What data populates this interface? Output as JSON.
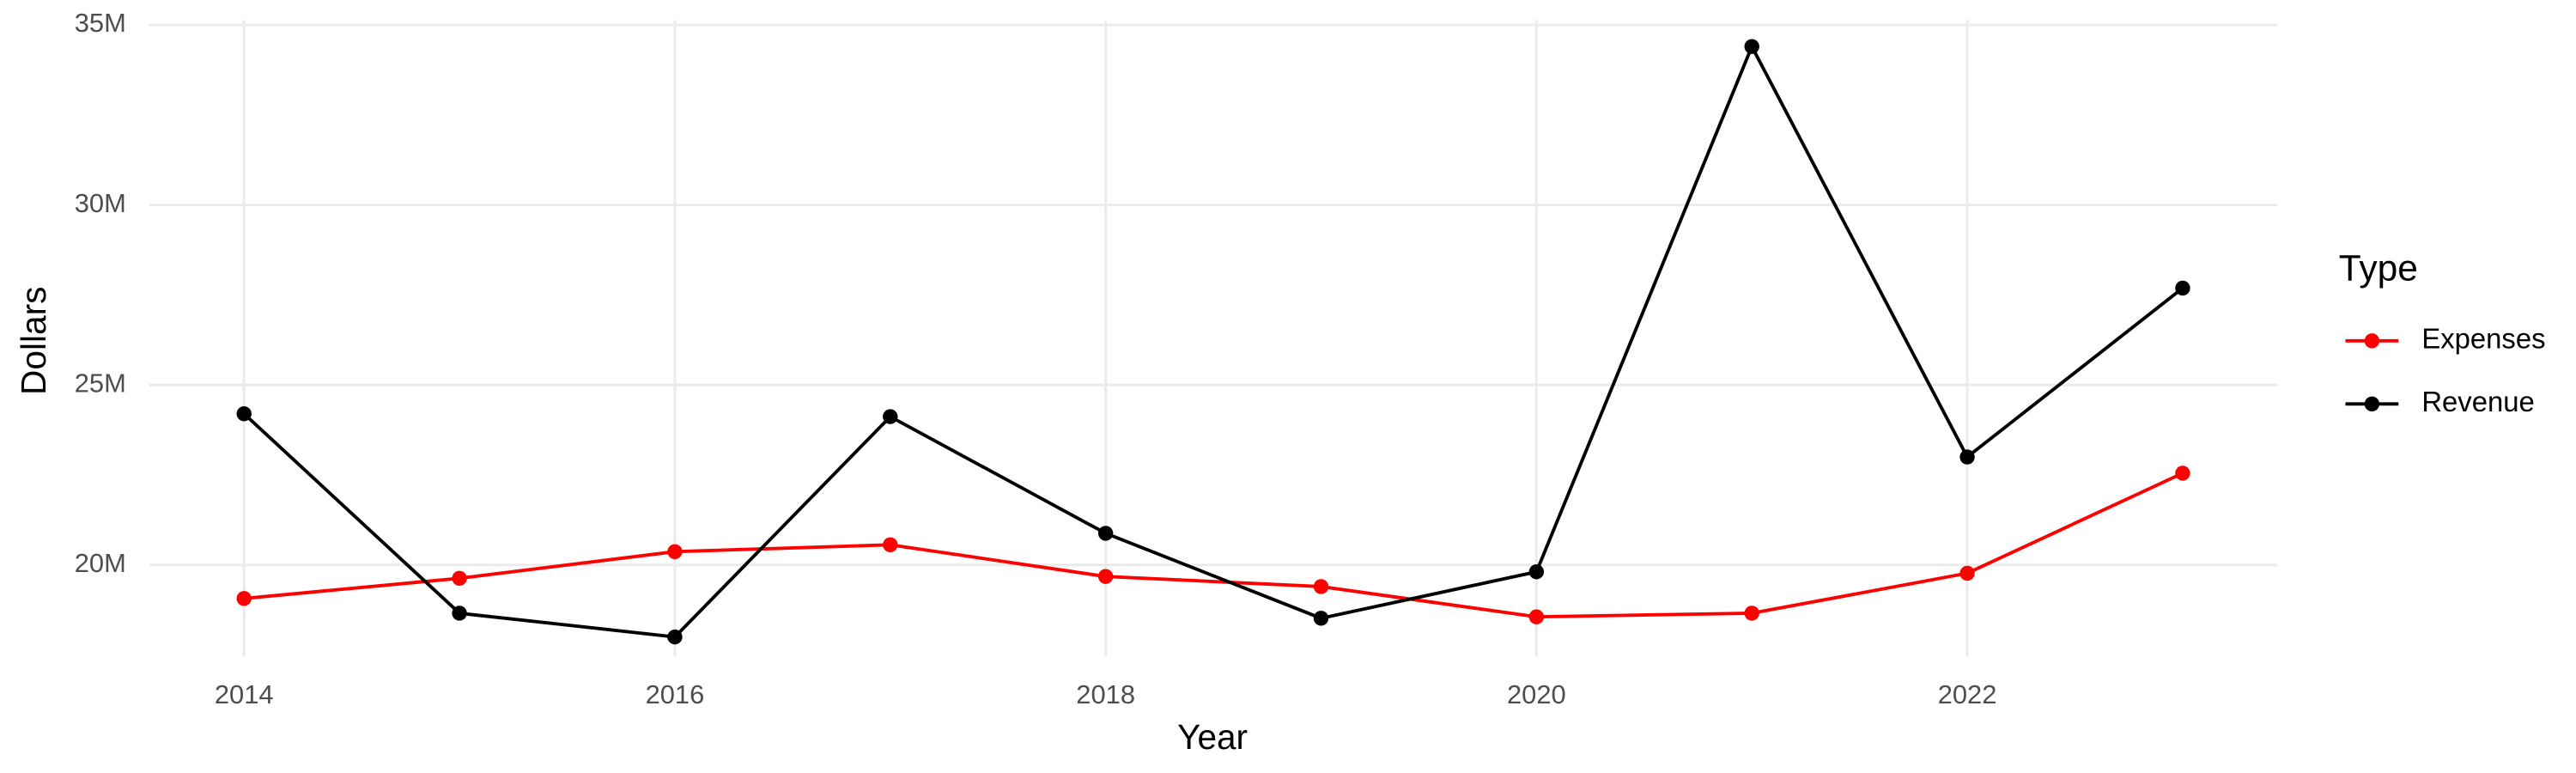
{
  "chart_data": {
    "type": "line",
    "x_label": "Year",
    "y_label": "Dollars",
    "legend_title": "Type",
    "x": [
      2014,
      2015,
      2016,
      2017,
      2018,
      2019,
      2020,
      2021,
      2022,
      2023
    ],
    "series": [
      {
        "name": "Expenses",
        "color": "#ff0000",
        "values": [
          19070000,
          19630000,
          20370000,
          20560000,
          19680000,
          19400000,
          18560000,
          18660000,
          19770000,
          22550000
        ]
      },
      {
        "name": "Revenue",
        "color": "#000000",
        "values": [
          24200000,
          18660000,
          18000000,
          24120000,
          20880000,
          18520000,
          19810000,
          34400000,
          23000000,
          27690000
        ]
      }
    ],
    "xlim": [
      2013.56,
      2023.44
    ],
    "xticks": [
      2014,
      2016,
      2018,
      2020,
      2022
    ],
    "ylim": [
      17454000,
      35139000
    ],
    "yticks": [
      {
        "value": 20000000,
        "label": "20M"
      },
      {
        "value": 25000000,
        "label": "25M"
      },
      {
        "value": 30000000,
        "label": "30M"
      },
      {
        "value": 35000000,
        "label": "35M"
      }
    ],
    "grid": true,
    "legend_position": "right"
  }
}
